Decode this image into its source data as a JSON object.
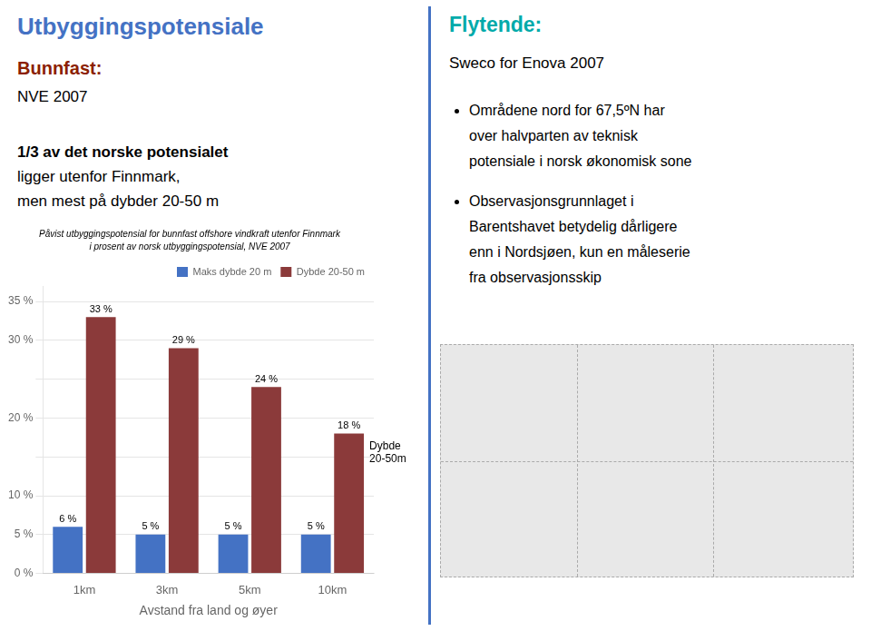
{
  "chart_data": {
    "type": "bar",
    "title": "Påvist utbyggingspotensial for bunnfast offshore vindkraft utenfor Finnmark",
    "subtitle": "i prosent av norsk utbyggingspotensial, NVE 2007",
    "categories": [
      "1km",
      "3km",
      "5km",
      "10km"
    ],
    "series": [
      {
        "name": "Maks dybde 20 m",
        "color": "#4472C4",
        "values": [
          6,
          5,
          5,
          5
        ],
        "value_labels": [
          "6 %",
          "5 %",
          "5 %",
          "5 %"
        ]
      },
      {
        "name": "Dybde 20-50 m",
        "color": "#8B3A3A",
        "values": [
          33,
          29,
          24,
          18
        ],
        "value_labels": [
          "33 %",
          "29 %",
          "24 %",
          "18 %"
        ]
      }
    ],
    "xlabel": "Avstand fra land og øyer",
    "ylim": [
      0,
      37
    ],
    "yticks": [
      {
        "value": 0,
        "label": "0 %"
      },
      {
        "value": 5,
        "label": "5 %"
      },
      {
        "value": 10,
        "label": "10 %"
      },
      {
        "value": 15,
        "label": ""
      },
      {
        "value": 20,
        "label": "20 %"
      },
      {
        "value": 25,
        "label": ""
      },
      {
        "value": 30,
        "label": "30 %"
      },
      {
        "value": 35,
        "label": "35 %"
      }
    ],
    "grid": true,
    "legend": "upper right",
    "data_labels": true,
    "annotations": [
      {
        "text": "Dybde\n20-50m",
        "x": "10km",
        "y": 15.5
      }
    ]
  },
  "divider_color": "#4472C4",
  "left_panel": {
    "title": "Utbyggingspotensiale",
    "title_color": "#4472C4",
    "subtitle": "Bunnfast:",
    "subtitle_color": "#8B2000",
    "source": "NVE 2007",
    "body": [
      "1/3 av det norske potensialet",
      "ligger utenfor Finnmark,",
      "men mest på dybder 20-50 m"
    ]
  },
  "right_panel": {
    "title": "Flytende:",
    "title_color": "#00AAAA",
    "subtitle": "Sweco for Enova 2007",
    "bullets": [
      [
        "Områdene nord for 67,5ºN har",
        "over halvparten av teknisk",
        "potensiale i norsk økonomisk sone"
      ],
      [
        "Observasjonsgrunnlaget i",
        "Barentshavet betydelig dårligere",
        "enn i Nordsjøen, kun en måleserie",
        "fra observasjonsskip"
      ]
    ]
  }
}
